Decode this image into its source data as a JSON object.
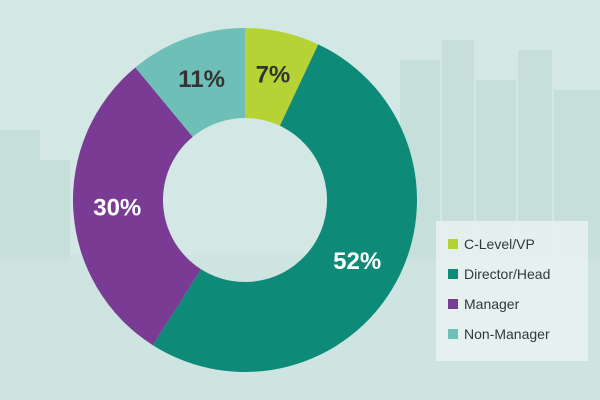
{
  "chart_data": {
    "type": "pie",
    "donut": true,
    "categories": [
      "C-Level/VP",
      "Director/Head",
      "Manager",
      "Non-Manager"
    ],
    "values": [
      7,
      52,
      30,
      11
    ],
    "labels": [
      "7%",
      "52%",
      "30%",
      "11%"
    ],
    "colors": [
      "#b5d334",
      "#0e8a78",
      "#7a3b95",
      "#6dbfb8"
    ],
    "label_colors": [
      "#333333",
      "#ffffff",
      "#ffffff",
      "#333333"
    ],
    "start_angle_deg": 0,
    "direction": "clockwise",
    "legend_position": "bottom-right",
    "title": "",
    "legend": [
      {
        "label": "C-Level/VP",
        "color": "#b5d334"
      },
      {
        "label": "Director/Head",
        "color": "#0e8a78"
      },
      {
        "label": "Manager",
        "color": "#7a3b95"
      },
      {
        "label": "Non-Manager",
        "color": "#6dbfb8"
      }
    ]
  },
  "background_color": "#d3e8e5"
}
